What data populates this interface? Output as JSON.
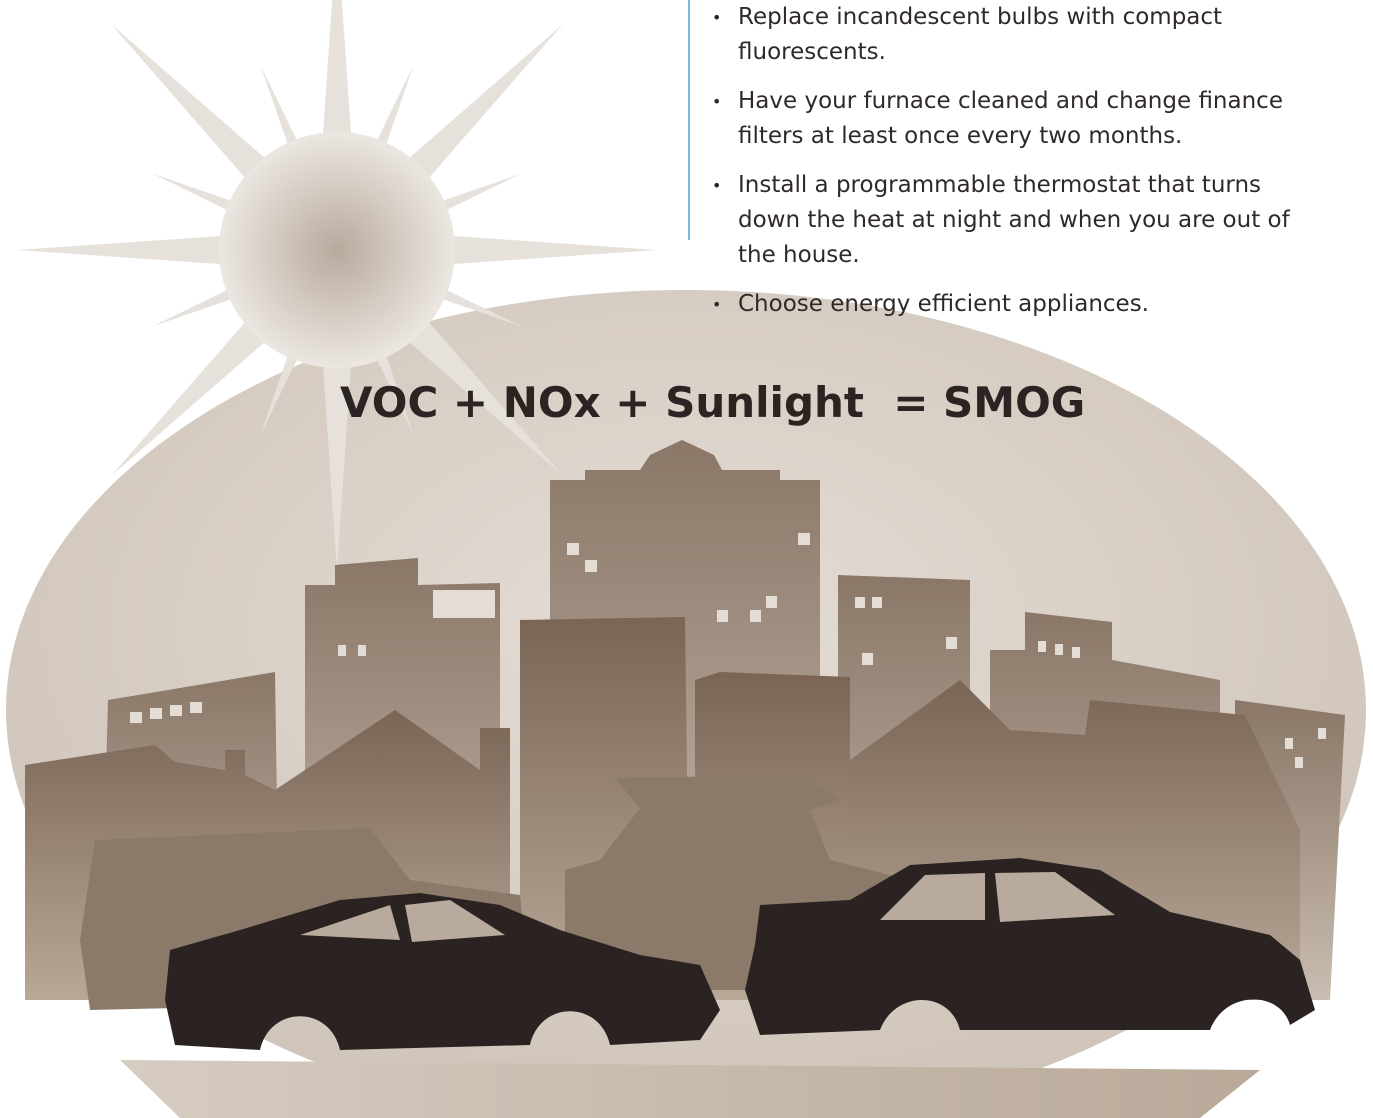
{
  "tips": [
    "Replace incandescent bulbs with compact fluorescents.",
    "Have your furnace cleaned and change finance filters at least once every two months.",
    "Install a programmable thermostat that turns down the heat at night and when you are out of the house.",
    "Choose energy efficient appliances."
  ],
  "equation": "VOC + NOx + Sunlight  = SMOG"
}
